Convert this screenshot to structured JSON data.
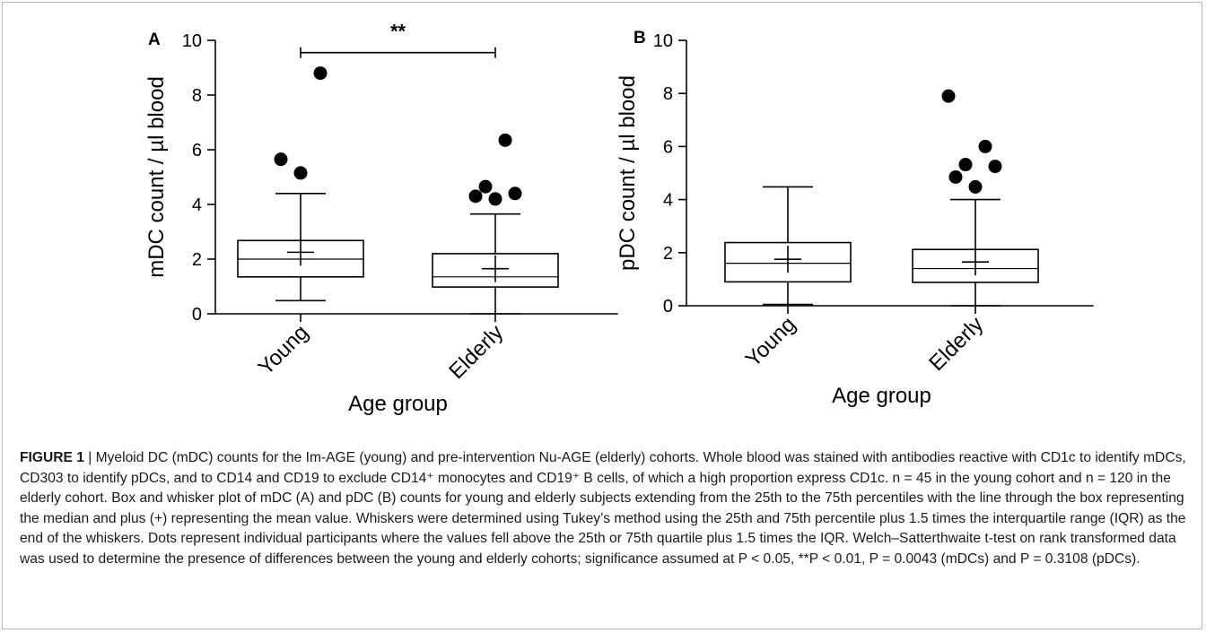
{
  "chart_data": [
    {
      "type": "box",
      "panel_label": "A",
      "xlabel": "Age group",
      "ylabel": "mDC count / µl blood",
      "ylim": [
        0,
        10
      ],
      "yticks": [
        0,
        2,
        4,
        6,
        8,
        10
      ],
      "categories": [
        "Young",
        "Elderly"
      ],
      "boxes": [
        {
          "category": "Young",
          "whisker_low": 0.48,
          "q1": 1.35,
          "median": 2.0,
          "q3": 2.68,
          "whisker_high": 4.4,
          "mean": 2.25,
          "outliers": [
            5.15,
            5.65,
            8.8
          ]
        },
        {
          "category": "Elderly",
          "whisker_low": 0.0,
          "q1": 0.98,
          "median": 1.35,
          "q3": 2.2,
          "whisker_high": 3.65,
          "mean": 1.65,
          "outliers": [
            4.2,
            4.3,
            4.4,
            4.65,
            6.35
          ]
        }
      ],
      "significance": {
        "label": "**",
        "between": [
          "Young",
          "Elderly"
        ],
        "y": 9.55
      }
    },
    {
      "type": "box",
      "panel_label": "B",
      "xlabel": "Age group",
      "ylabel": "pDC count / µl blood",
      "ylim": [
        0,
        10
      ],
      "yticks": [
        0,
        2,
        4,
        6,
        8,
        10
      ],
      "categories": [
        "Young",
        "Elderly"
      ],
      "boxes": [
        {
          "category": "Young",
          "whisker_low": 0.05,
          "q1": 0.9,
          "median": 1.6,
          "q3": 2.38,
          "whisker_high": 4.48,
          "mean": 1.75,
          "outliers": []
        },
        {
          "category": "Elderly",
          "whisker_low": 0.0,
          "q1": 0.88,
          "median": 1.4,
          "q3": 2.12,
          "whisker_high": 4.0,
          "mean": 1.65,
          "outliers": [
            4.48,
            4.85,
            5.25,
            5.32,
            6.0,
            7.9
          ]
        }
      ]
    }
  ],
  "caption": {
    "lead": "FIGURE 1",
    "text": "| Myeloid DC (mDC) counts for the Im-AGE (young) and pre-intervention Nu-AGE (elderly) cohorts. Whole blood was stained with antibodies reactive with CD1c to identify mDCs, CD303 to identify pDCs, and to CD14 and CD19 to exclude CD14⁺ monocytes and CD19⁺ B cells, of which a high proportion express CD1c. n = 45 in the young cohort and n = 120 in the elderly cohort. Box and whisker plot of mDC (A) and pDC (B) counts for young and elderly subjects extending from the 25th to the 75th percentiles with the line through the box representing the median and plus (+) representing the mean value. Whiskers were determined using Tukey’s method using the 25th and 75th percentile plus 1.5 times the interquartile range (IQR) as the end of the whiskers. Dots represent individual participants where the values fell above the 25th or 75th quartile plus 1.5 times the IQR. Welch–Satterthwaite t-test on rank transformed data was used to determine the presence of differences between the young and elderly cohorts; significance assumed at P < 0.05, **P < 0.01, P = 0.0043 (mDCs) and P = 0.3108 (pDCs)."
  }
}
